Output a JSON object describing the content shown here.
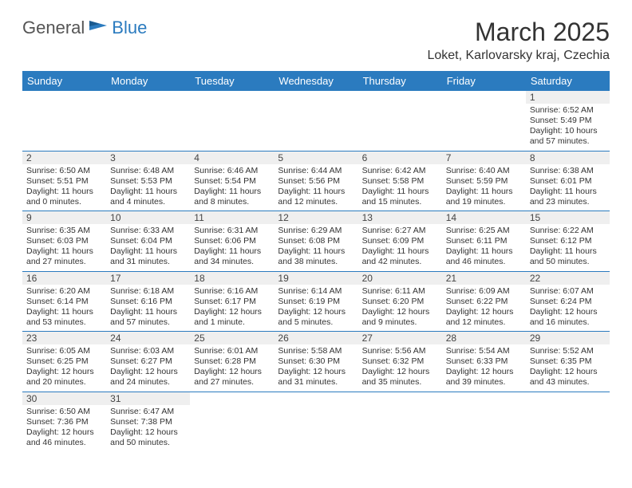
{
  "logo": {
    "text1": "General",
    "text2": "Blue",
    "icon_color": "#2b7bbf"
  },
  "header": {
    "month": "March 2025",
    "location": "Loket, Karlovarsky kraj, Czechia"
  },
  "colors": {
    "header_bg": "#2b7bbf",
    "header_fg": "#ffffff",
    "daynum_bg": "#efefef",
    "border": "#2b7bbf"
  },
  "day_names": [
    "Sunday",
    "Monday",
    "Tuesday",
    "Wednesday",
    "Thursday",
    "Friday",
    "Saturday"
  ],
  "weeks": [
    [
      null,
      null,
      null,
      null,
      null,
      null,
      {
        "n": "1",
        "sunrise": "6:52 AM",
        "sunset": "5:49 PM",
        "daylight": "10 hours and 57 minutes."
      }
    ],
    [
      {
        "n": "2",
        "sunrise": "6:50 AM",
        "sunset": "5:51 PM",
        "daylight": "11 hours and 0 minutes."
      },
      {
        "n": "3",
        "sunrise": "6:48 AM",
        "sunset": "5:53 PM",
        "daylight": "11 hours and 4 minutes."
      },
      {
        "n": "4",
        "sunrise": "6:46 AM",
        "sunset": "5:54 PM",
        "daylight": "11 hours and 8 minutes."
      },
      {
        "n": "5",
        "sunrise": "6:44 AM",
        "sunset": "5:56 PM",
        "daylight": "11 hours and 12 minutes."
      },
      {
        "n": "6",
        "sunrise": "6:42 AM",
        "sunset": "5:58 PM",
        "daylight": "11 hours and 15 minutes."
      },
      {
        "n": "7",
        "sunrise": "6:40 AM",
        "sunset": "5:59 PM",
        "daylight": "11 hours and 19 minutes."
      },
      {
        "n": "8",
        "sunrise": "6:38 AM",
        "sunset": "6:01 PM",
        "daylight": "11 hours and 23 minutes."
      }
    ],
    [
      {
        "n": "9",
        "sunrise": "6:35 AM",
        "sunset": "6:03 PM",
        "daylight": "11 hours and 27 minutes."
      },
      {
        "n": "10",
        "sunrise": "6:33 AM",
        "sunset": "6:04 PM",
        "daylight": "11 hours and 31 minutes."
      },
      {
        "n": "11",
        "sunrise": "6:31 AM",
        "sunset": "6:06 PM",
        "daylight": "11 hours and 34 minutes."
      },
      {
        "n": "12",
        "sunrise": "6:29 AM",
        "sunset": "6:08 PM",
        "daylight": "11 hours and 38 minutes."
      },
      {
        "n": "13",
        "sunrise": "6:27 AM",
        "sunset": "6:09 PM",
        "daylight": "11 hours and 42 minutes."
      },
      {
        "n": "14",
        "sunrise": "6:25 AM",
        "sunset": "6:11 PM",
        "daylight": "11 hours and 46 minutes."
      },
      {
        "n": "15",
        "sunrise": "6:22 AM",
        "sunset": "6:12 PM",
        "daylight": "11 hours and 50 minutes."
      }
    ],
    [
      {
        "n": "16",
        "sunrise": "6:20 AM",
        "sunset": "6:14 PM",
        "daylight": "11 hours and 53 minutes."
      },
      {
        "n": "17",
        "sunrise": "6:18 AM",
        "sunset": "6:16 PM",
        "daylight": "11 hours and 57 minutes."
      },
      {
        "n": "18",
        "sunrise": "6:16 AM",
        "sunset": "6:17 PM",
        "daylight": "12 hours and 1 minute."
      },
      {
        "n": "19",
        "sunrise": "6:14 AM",
        "sunset": "6:19 PM",
        "daylight": "12 hours and 5 minutes."
      },
      {
        "n": "20",
        "sunrise": "6:11 AM",
        "sunset": "6:20 PM",
        "daylight": "12 hours and 9 minutes."
      },
      {
        "n": "21",
        "sunrise": "6:09 AM",
        "sunset": "6:22 PM",
        "daylight": "12 hours and 12 minutes."
      },
      {
        "n": "22",
        "sunrise": "6:07 AM",
        "sunset": "6:24 PM",
        "daylight": "12 hours and 16 minutes."
      }
    ],
    [
      {
        "n": "23",
        "sunrise": "6:05 AM",
        "sunset": "6:25 PM",
        "daylight": "12 hours and 20 minutes."
      },
      {
        "n": "24",
        "sunrise": "6:03 AM",
        "sunset": "6:27 PM",
        "daylight": "12 hours and 24 minutes."
      },
      {
        "n": "25",
        "sunrise": "6:01 AM",
        "sunset": "6:28 PM",
        "daylight": "12 hours and 27 minutes."
      },
      {
        "n": "26",
        "sunrise": "5:58 AM",
        "sunset": "6:30 PM",
        "daylight": "12 hours and 31 minutes."
      },
      {
        "n": "27",
        "sunrise": "5:56 AM",
        "sunset": "6:32 PM",
        "daylight": "12 hours and 35 minutes."
      },
      {
        "n": "28",
        "sunrise": "5:54 AM",
        "sunset": "6:33 PM",
        "daylight": "12 hours and 39 minutes."
      },
      {
        "n": "29",
        "sunrise": "5:52 AM",
        "sunset": "6:35 PM",
        "daylight": "12 hours and 43 minutes."
      }
    ],
    [
      {
        "n": "30",
        "sunrise": "6:50 AM",
        "sunset": "7:36 PM",
        "daylight": "12 hours and 46 minutes."
      },
      {
        "n": "31",
        "sunrise": "6:47 AM",
        "sunset": "7:38 PM",
        "daylight": "12 hours and 50 minutes."
      },
      null,
      null,
      null,
      null,
      null
    ]
  ],
  "labels": {
    "sunrise": "Sunrise:",
    "sunset": "Sunset:",
    "daylight": "Daylight:"
  }
}
